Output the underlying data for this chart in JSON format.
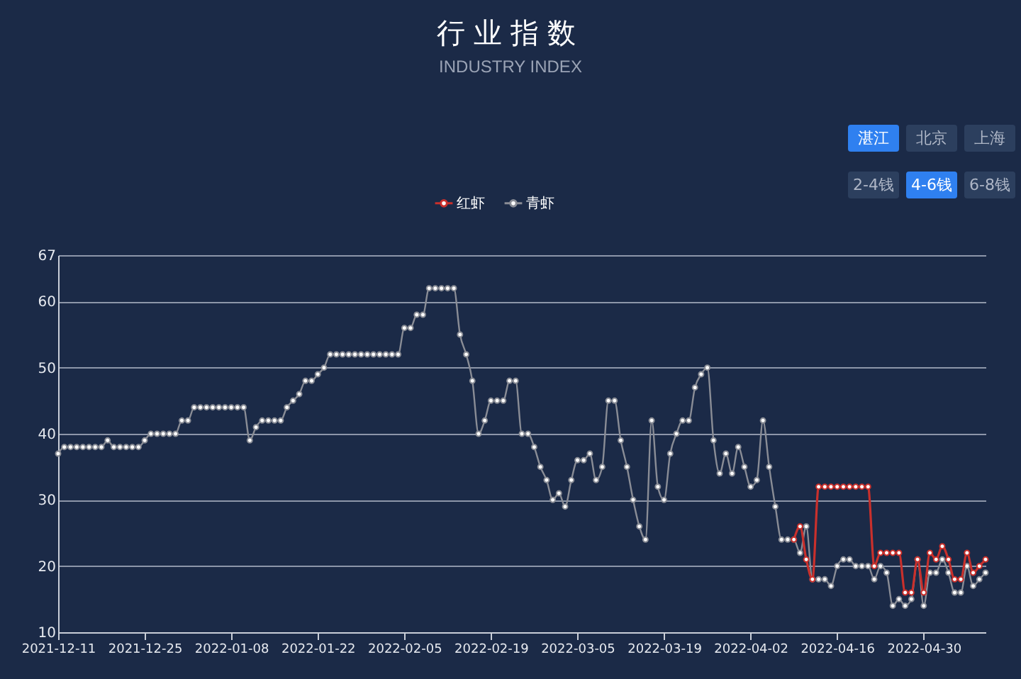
{
  "chart_data": {
    "type": "line",
    "title": "行业指数",
    "subtitle": "INDUSTRY INDEX",
    "annotations": [
      "湛江",
      "北京",
      "上海",
      "2-4钱",
      "4-6钱",
      "6-8钱"
    ],
    "x": [
      "2021-12-11",
      "2021-12-12",
      "2021-12-13",
      "2021-12-14",
      "2021-12-15",
      "2021-12-16",
      "2021-12-17",
      "2021-12-18",
      "2021-12-19",
      "2021-12-20",
      "2021-12-21",
      "2021-12-22",
      "2021-12-23",
      "2021-12-24",
      "2021-12-25",
      "2021-12-26",
      "2021-12-27",
      "2021-12-28",
      "2021-12-29",
      "2021-12-30",
      "2021-12-31",
      "2022-01-01",
      "2022-01-02",
      "2022-01-03",
      "2022-01-04",
      "2022-01-05",
      "2022-01-06",
      "2022-01-07",
      "2022-01-08",
      "2022-01-09",
      "2022-01-10",
      "2022-01-11",
      "2022-01-12",
      "2022-01-13",
      "2022-01-14",
      "2022-01-15",
      "2022-01-16",
      "2022-01-17",
      "2022-01-18",
      "2022-01-19",
      "2022-01-20",
      "2022-01-21",
      "2022-01-22",
      "2022-01-23",
      "2022-01-24",
      "2022-01-25",
      "2022-01-26",
      "2022-01-27",
      "2022-01-28",
      "2022-01-29",
      "2022-01-30",
      "2022-01-31",
      "2022-02-01",
      "2022-02-02",
      "2022-02-03",
      "2022-02-04",
      "2022-02-05",
      "2022-02-06",
      "2022-02-07",
      "2022-02-08",
      "2022-02-09",
      "2022-02-10",
      "2022-02-11",
      "2022-02-12",
      "2022-02-13",
      "2022-02-14",
      "2022-02-15",
      "2022-02-16",
      "2022-02-17",
      "2022-02-18",
      "2022-02-19",
      "2022-02-20",
      "2022-02-21",
      "2022-02-22",
      "2022-02-23",
      "2022-02-24",
      "2022-02-25",
      "2022-02-26",
      "2022-02-27",
      "2022-02-28",
      "2022-03-01",
      "2022-03-02",
      "2022-03-03",
      "2022-03-04",
      "2022-03-05",
      "2022-03-06",
      "2022-03-07",
      "2022-03-08",
      "2022-03-09",
      "2022-03-10",
      "2022-03-11",
      "2022-03-12",
      "2022-03-13",
      "2022-03-14",
      "2022-03-15",
      "2022-03-16",
      "2022-03-17",
      "2022-03-18",
      "2022-03-19",
      "2022-03-20",
      "2022-03-21",
      "2022-03-22",
      "2022-03-23",
      "2022-03-24",
      "2022-03-25",
      "2022-03-26",
      "2022-03-27",
      "2022-03-28",
      "2022-03-29",
      "2022-03-30",
      "2022-03-31",
      "2022-04-01",
      "2022-04-02",
      "2022-04-03",
      "2022-04-04",
      "2022-04-05",
      "2022-04-06",
      "2022-04-07",
      "2022-04-08",
      "2022-04-09",
      "2022-04-10",
      "2022-04-11",
      "2022-04-12",
      "2022-04-13",
      "2022-04-14",
      "2022-04-15",
      "2022-04-16",
      "2022-04-17",
      "2022-04-18",
      "2022-04-19",
      "2022-04-20",
      "2022-04-21",
      "2022-04-22",
      "2022-04-23",
      "2022-04-24",
      "2022-04-25",
      "2022-04-26",
      "2022-04-27",
      "2022-04-28",
      "2022-04-29",
      "2022-04-30",
      "2022-05-01",
      "2022-05-02",
      "2022-05-03",
      "2022-05-04",
      "2022-05-05",
      "2022-05-06",
      "2022-05-07",
      "2022-05-08",
      "2022-05-09",
      "2022-05-10"
    ],
    "series": [
      {
        "name": "红虾",
        "color": "#c9302c",
        "x": [
          "2022-04-09",
          "2022-04-10",
          "2022-04-11",
          "2022-04-12",
          "2022-04-13",
          "2022-04-14",
          "2022-04-15",
          "2022-04-16",
          "2022-04-17",
          "2022-04-18",
          "2022-04-19",
          "2022-04-20",
          "2022-04-21",
          "2022-04-22",
          "2022-04-23",
          "2022-04-24",
          "2022-04-25",
          "2022-04-26",
          "2022-04-27",
          "2022-04-28",
          "2022-04-29",
          "2022-04-30",
          "2022-05-01",
          "2022-05-02",
          "2022-05-03",
          "2022-05-04",
          "2022-05-05",
          "2022-05-06",
          "2022-05-07",
          "2022-05-08",
          "2022-05-09",
          "2022-05-10"
        ],
        "values": [
          24,
          26,
          21,
          18,
          32,
          32,
          32,
          32,
          32,
          32,
          32,
          32,
          32,
          20,
          22,
          22,
          22,
          22,
          16,
          16,
          21,
          16,
          22,
          21,
          23,
          21,
          18,
          18,
          22,
          19,
          20,
          21
        ]
      },
      {
        "name": "青虾",
        "color": "#8a8d96",
        "values": [
          37,
          38,
          38,
          38,
          38,
          38,
          38,
          38,
          39,
          38,
          38,
          38,
          38,
          38,
          39,
          40,
          40,
          40,
          40,
          40,
          42,
          42,
          44,
          44,
          44,
          44,
          44,
          44,
          44,
          44,
          44,
          39,
          41,
          42,
          42,
          42,
          42,
          44,
          45,
          46,
          48,
          48,
          49,
          50,
          52,
          52,
          52,
          52,
          52,
          52,
          52,
          52,
          52,
          52,
          52,
          52,
          56,
          56,
          58,
          58,
          62,
          62,
          62,
          62,
          62,
          55,
          52,
          48,
          40,
          42,
          45,
          45,
          45,
          48,
          48,
          40,
          40,
          38,
          35,
          33,
          30,
          31,
          29,
          33,
          36,
          36,
          37,
          33,
          35,
          45,
          45,
          39,
          35,
          30,
          26,
          24,
          42,
          32,
          30,
          37,
          40,
          42,
          42,
          47,
          49,
          50,
          39,
          34,
          37,
          34,
          38,
          35,
          32,
          33,
          42,
          35,
          29,
          24,
          24,
          24,
          22,
          26,
          18,
          18,
          18,
          17,
          20,
          21,
          21,
          20,
          20,
          20,
          18,
          20,
          19,
          14,
          15,
          14,
          15,
          21,
          14,
          19,
          19,
          21,
          19,
          16,
          16,
          20,
          17,
          18,
          19
        ]
      }
    ],
    "xlim": [
      "2021-12-11",
      "2022-05-10"
    ],
    "xticks": [
      "2021-12-11",
      "2021-12-25",
      "2022-01-08",
      "2022-01-22",
      "2022-02-05",
      "2022-02-19",
      "2022-03-05",
      "2022-03-19",
      "2022-04-02",
      "2022-04-16",
      "2022-04-30"
    ],
    "ylim": [
      10,
      67
    ],
    "yticks": [
      10,
      20,
      30,
      40,
      50,
      60,
      67
    ],
    "grid": "y",
    "legend": "top",
    "marker": "circle",
    "line_style": "solid"
  }
}
